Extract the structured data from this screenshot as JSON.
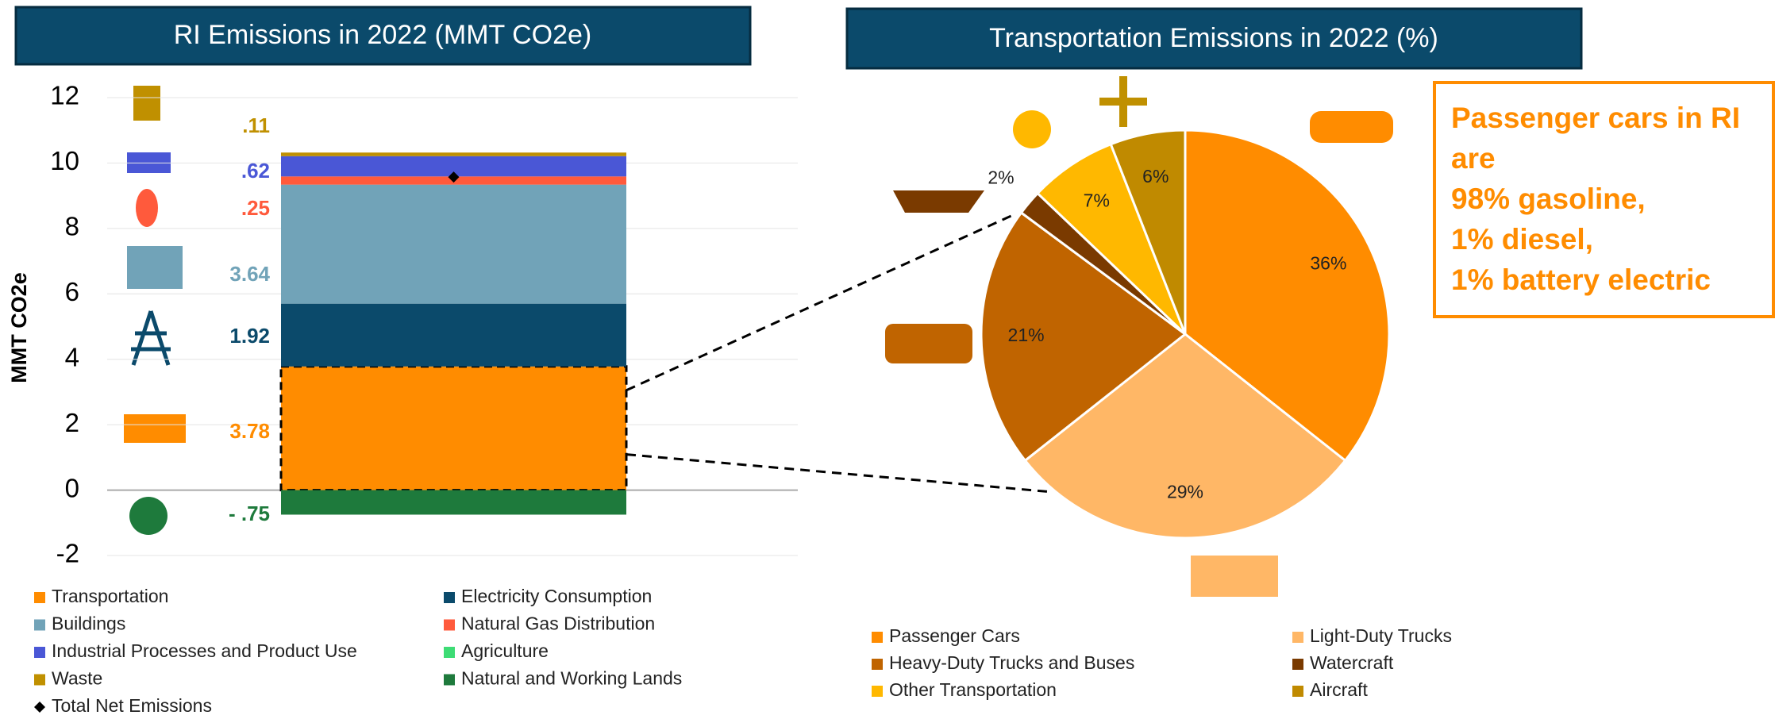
{
  "chart_data": [
    {
      "type": "bar",
      "stacked": true,
      "title": "RI Emissions in 2022 (MMT CO2e)",
      "y_label": "MMT CO2e",
      "categories": [
        null
      ],
      "ylim": [
        -2,
        12
      ],
      "yticks": [
        -2,
        0,
        2,
        4,
        6,
        8,
        10,
        12
      ],
      "grid": true,
      "series": [
        {
          "name": "Transportation",
          "color": "#ff8c00",
          "values": [
            3.78
          ],
          "value_labels": [
            "3.78"
          ]
        },
        {
          "name": "Electricity Consumption",
          "color": "#0b4a6b",
          "values": [
            1.92
          ],
          "value_labels": [
            "1.92"
          ]
        },
        {
          "name": "Buildings",
          "color": "#71a3b8",
          "values": [
            3.64
          ],
          "value_labels": [
            "3.64"
          ]
        },
        {
          "name": "Natural Gas Distribution",
          "color": "#ff5a3c",
          "values": [
            0.25
          ],
          "value_labels": [
            ".25"
          ]
        },
        {
          "name": "Industrial Processes and Product Use",
          "color": "#4a57d6",
          "values": [
            0.62
          ],
          "value_labels": [
            ".62"
          ]
        },
        {
          "name": "Agriculture",
          "color": "#3ddc75",
          "values": [
            null
          ]
        },
        {
          "name": "Waste",
          "color": "#c09000",
          "values": [
            0.11
          ],
          "value_labels": [
            ".11"
          ]
        },
        {
          "name": "Natural and Working Lands",
          "color": "#1e7a3c",
          "values": [
            -0.75
          ],
          "value_labels": [
            "- .75"
          ]
        },
        {
          "name": "Total Net Emissions",
          "color": "#000000",
          "marker": "diamond",
          "values": [
            9.57
          ]
        }
      ]
    },
    {
      "type": "pie",
      "title": "Transportation Emissions in 2022 (%)",
      "categories": [
        "Passenger Cars",
        "Light-Duty Trucks",
        "Heavy-Duty Trucks and Buses",
        "Watercraft",
        "Other Transportation",
        "Aircraft"
      ],
      "values": [
        36,
        29,
        21,
        2,
        7,
        6
      ],
      "value_labels": [
        "36%",
        "29%",
        "21%",
        "2%",
        "7%",
        "6%"
      ],
      "colors": [
        "#ff8c00",
        "#ffb766",
        "#c06400",
        "#7a3a00",
        "#ffb800",
        "#c08a00"
      ],
      "annotation": [
        "Passenger cars in RI",
        "are",
        "98% gasoline,",
        "1% diesel,",
        "1% battery electric"
      ]
    }
  ]
}
